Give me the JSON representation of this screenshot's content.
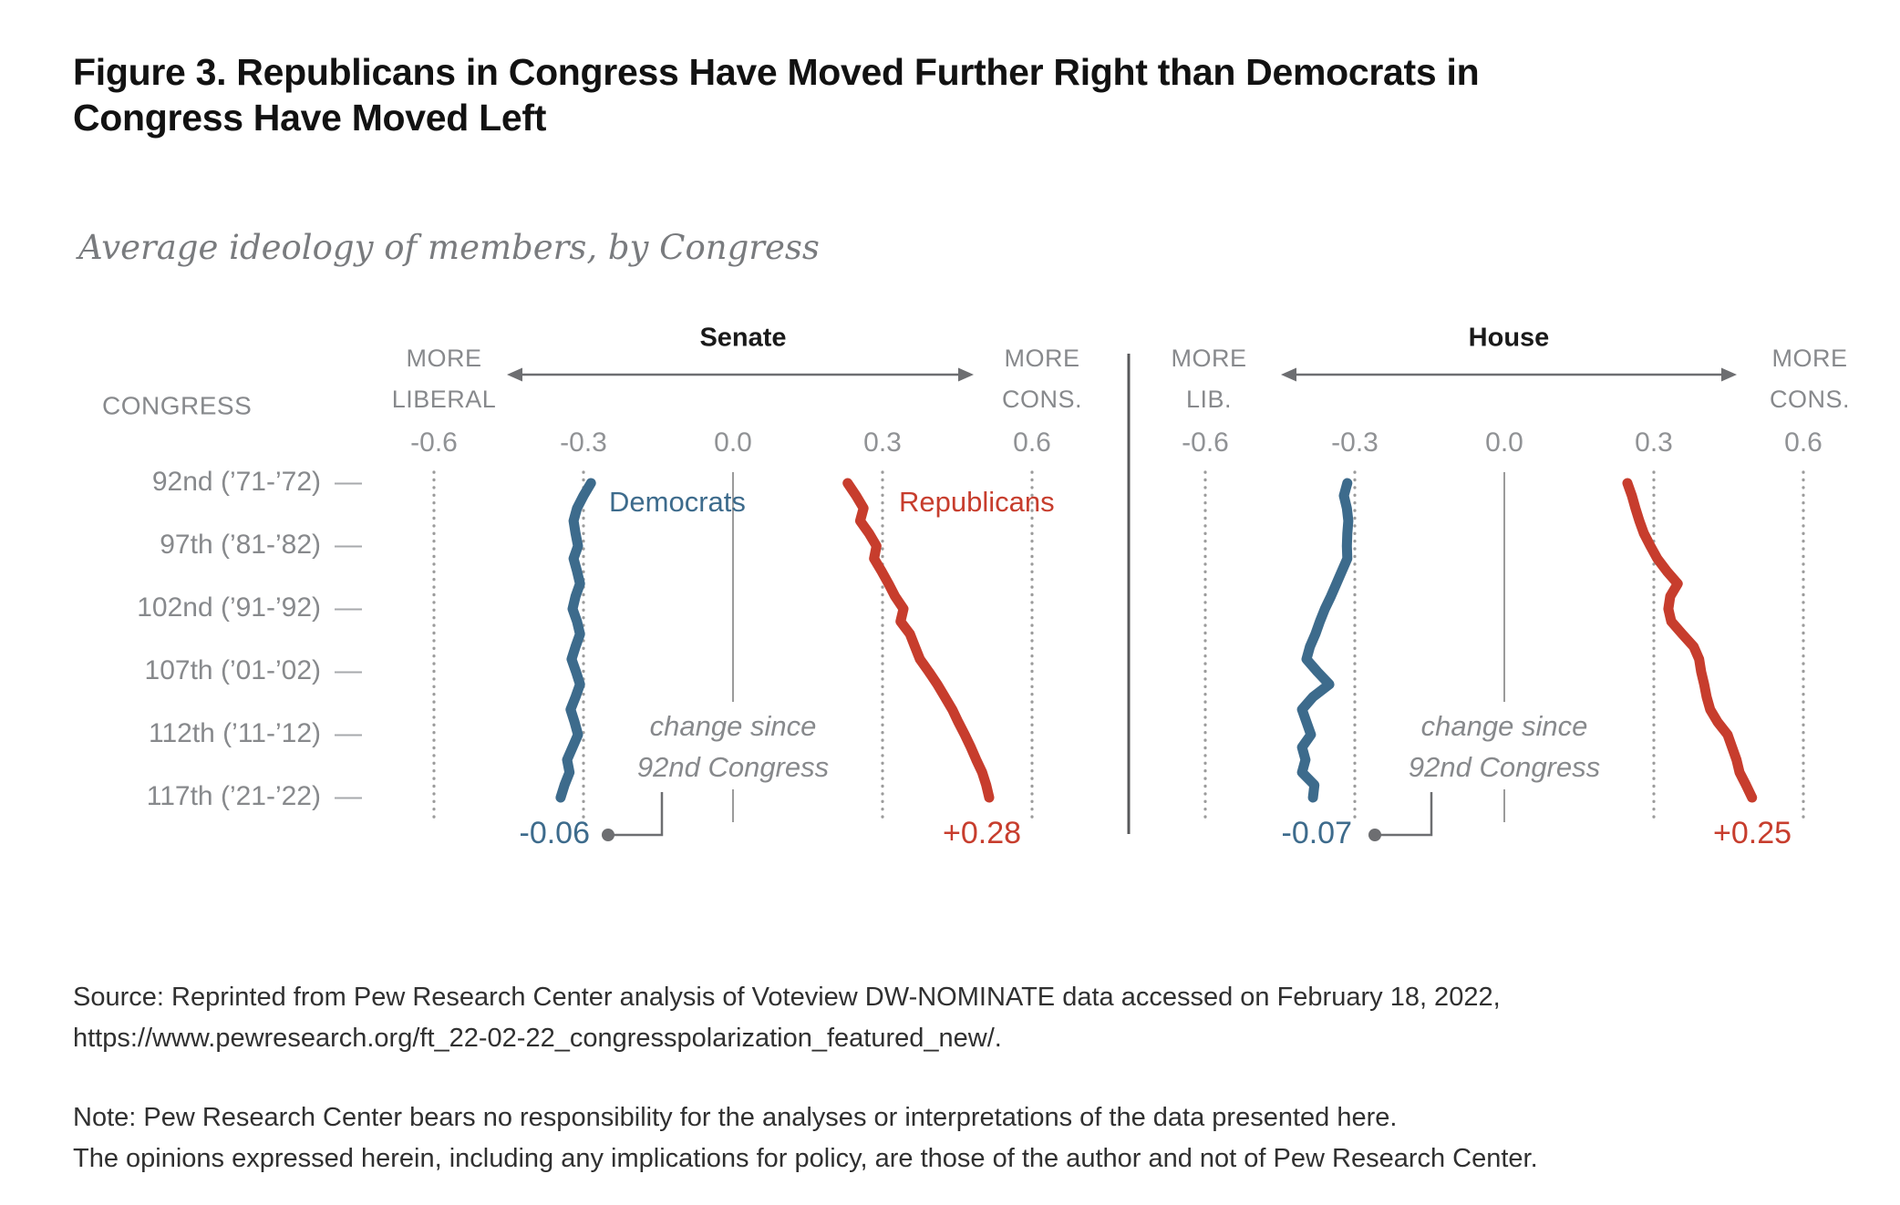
{
  "title": {
    "lines": [
      "Figure 3. Republicans in Congress Have Moved Further Right than Democrats in",
      "Congress Have Moved Left"
    ]
  },
  "subtitle": "Average ideology of members, by Congress",
  "axis": {
    "congress_label": "CONGRESS",
    "row_labels": [
      "92nd (’71-’72)",
      "97th (’81-’82)",
      "102nd (’91-’92)",
      "107th (’01-’02)",
      "112th (’11-’12)",
      "117th (’21-’22)"
    ],
    "row_dash": "—"
  },
  "colors": {
    "democrat": "#3d6b8c",
    "republican": "#c73d2d",
    "gray_text": "#87898c",
    "grid": "#9b9b9b",
    "divider": "#58595b"
  },
  "chart_data": [
    {
      "type": "line",
      "title": "Senate",
      "more_left": [
        "MORE",
        "LIBERAL"
      ],
      "more_right": [
        "MORE",
        "CONS."
      ],
      "x_ticks": [
        -0.6,
        -0.3,
        0,
        0.3,
        0.6
      ],
      "x_tick_labels": [
        "-0.6",
        "-0.3",
        "0.0",
        "0.3",
        "0.6"
      ],
      "xlim": [
        -0.75,
        0.75
      ],
      "congresses": [
        92,
        93,
        94,
        95,
        96,
        97,
        98,
        99,
        100,
        101,
        102,
        103,
        104,
        105,
        106,
        107,
        108,
        109,
        110,
        111,
        112,
        113,
        114,
        115,
        116,
        117
      ],
      "series": [
        {
          "name": "Democrats",
          "color": "#3d6b8c",
          "values": [
            -0.285,
            -0.3,
            -0.313,
            -0.32,
            -0.316,
            -0.311,
            -0.32,
            -0.313,
            -0.307,
            -0.316,
            -0.322,
            -0.313,
            -0.307,
            -0.316,
            -0.324,
            -0.315,
            -0.307,
            -0.316,
            -0.326,
            -0.318,
            -0.311,
            -0.322,
            -0.333,
            -0.328,
            -0.338,
            -0.346
          ]
        },
        {
          "name": "Republicans",
          "color": "#c73d2d",
          "values": [
            0.23,
            0.247,
            0.262,
            0.255,
            0.273,
            0.288,
            0.283,
            0.298,
            0.312,
            0.325,
            0.342,
            0.336,
            0.355,
            0.365,
            0.375,
            0.393,
            0.41,
            0.425,
            0.44,
            0.452,
            0.465,
            0.477,
            0.488,
            0.5,
            0.508,
            0.514
          ]
        }
      ],
      "annotations": {
        "change_label": [
          "change since",
          "92nd Congress"
        ],
        "dem_change": "-0.06",
        "rep_change": "+0.28"
      }
    },
    {
      "type": "line",
      "title": "House",
      "more_left": [
        "MORE",
        "LIB."
      ],
      "more_right": [
        "MORE",
        "CONS."
      ],
      "x_ticks": [
        -0.6,
        -0.3,
        0,
        0.3,
        0.6
      ],
      "x_tick_labels": [
        "-0.6",
        "-0.3",
        "0.0",
        "0.3",
        "0.6"
      ],
      "xlim": [
        -0.75,
        0.75
      ],
      "congresses": [
        92,
        93,
        94,
        95,
        96,
        97,
        98,
        99,
        100,
        101,
        102,
        103,
        104,
        105,
        106,
        107,
        108,
        109,
        110,
        111,
        112,
        113,
        114,
        115,
        116,
        117
      ],
      "series": [
        {
          "name": "Democrats",
          "color": "#3d6b8c",
          "values": [
            -0.315,
            -0.322,
            -0.316,
            -0.313,
            -0.315,
            -0.316,
            -0.315,
            -0.326,
            -0.337,
            -0.348,
            -0.36,
            -0.37,
            -0.379,
            -0.39,
            -0.397,
            -0.375,
            -0.351,
            -0.384,
            -0.406,
            -0.397,
            -0.388,
            -0.406,
            -0.399,
            -0.406,
            -0.381,
            -0.384
          ]
        },
        {
          "name": "Republicans",
          "color": "#c73d2d",
          "values": [
            0.247,
            0.256,
            0.263,
            0.271,
            0.28,
            0.293,
            0.307,
            0.326,
            0.348,
            0.333,
            0.329,
            0.335,
            0.357,
            0.38,
            0.391,
            0.395,
            0.401,
            0.406,
            0.413,
            0.428,
            0.448,
            0.457,
            0.466,
            0.472,
            0.485,
            0.497
          ]
        }
      ],
      "annotations": {
        "change_label": [
          "change since",
          "92nd Congress"
        ],
        "dem_change": "-0.07",
        "rep_change": "+0.25"
      }
    }
  ],
  "footer": {
    "source_line1": "Source: Reprinted from Pew Research Center analysis of Voteview DW-NOMINATE data accessed on February 18, 2022,",
    "source_line2": "https://www.pewresearch.org/ft_22-02-22_congresspolarization_featured_new/.",
    "note_line1": "Note: Pew Research Center bears no responsibility for the analyses or interpretations of the data presented here.",
    "note_line2": "The opinions expressed herein, including any implications for policy, are those of the author and not of Pew Research Center."
  }
}
